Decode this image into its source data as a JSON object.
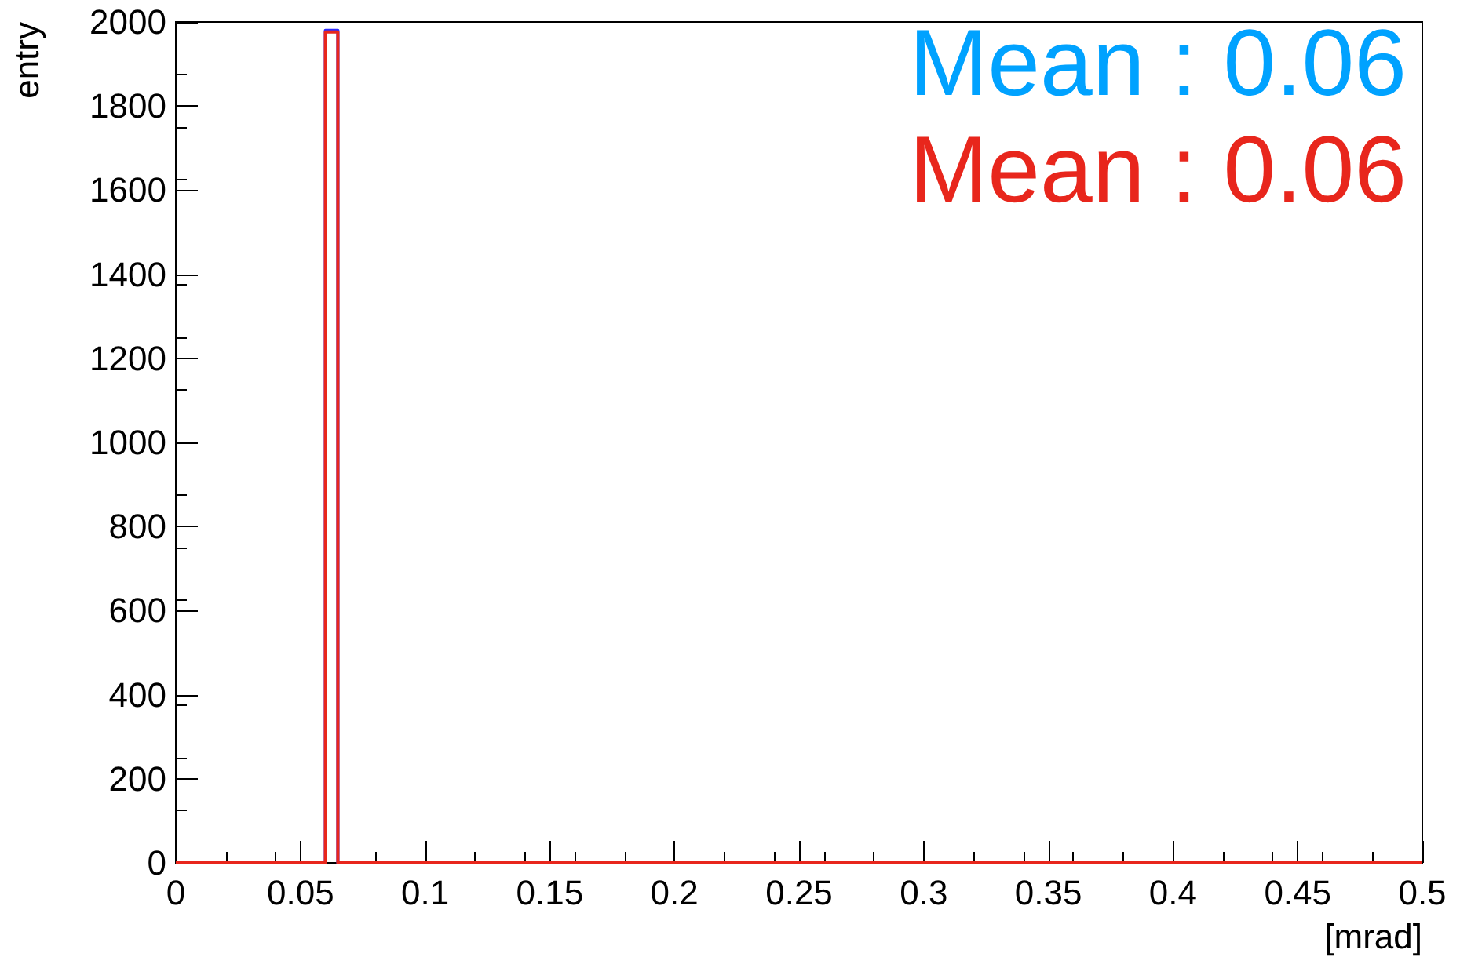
{
  "chart_data": {
    "type": "histogram",
    "xlabel": "[mrad]",
    "ylabel": "entry",
    "bins": [
      0,
      0.06,
      0.065,
      0.5
    ],
    "series": [
      {
        "color": "#2b2bff",
        "values": [
          0,
          1980,
          0
        ]
      },
      {
        "color": "#e8261c",
        "values": [
          0,
          1976,
          0
        ]
      }
    ],
    "xlim": [
      0,
      0.5
    ],
    "xticks": [
      0,
      0.05,
      0.1,
      0.15,
      0.2,
      0.25,
      0.3,
      0.35,
      0.4,
      0.45,
      0.5
    ],
    "ylim": [
      0,
      2000
    ],
    "yticks": [
      0,
      200,
      400,
      600,
      800,
      1000,
      1200,
      1400,
      1600,
      1800,
      2000
    ],
    "grid": false,
    "annotations": [
      "Mean : 0.06",
      "Mean : 0.06"
    ]
  }
}
